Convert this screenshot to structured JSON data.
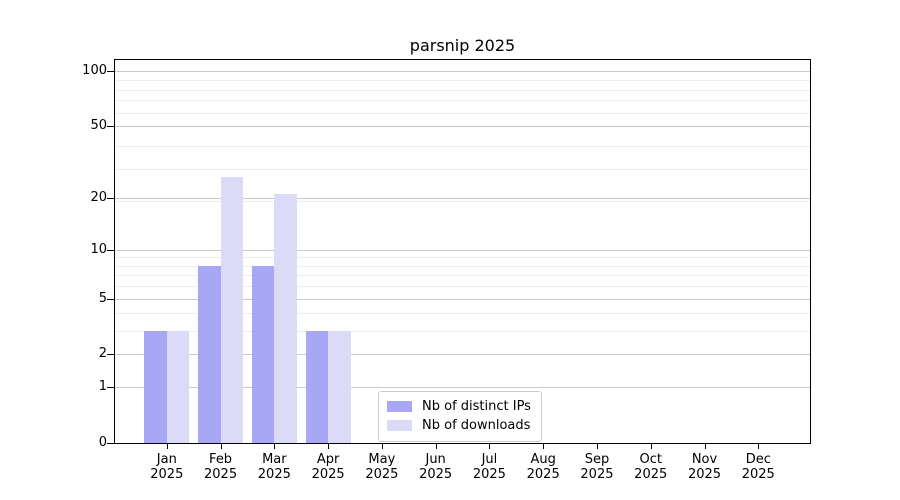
{
  "title": "parsnip 2025",
  "legend": {
    "items": [
      {
        "label": "Nb of distinct IPs",
        "color": "#a7a7f5"
      },
      {
        "label": "Nb of downloads",
        "color": "#dbdbf7"
      }
    ]
  },
  "axes": {
    "y_tick_labels": [
      "0",
      "1",
      "2",
      "5",
      "10",
      "20",
      "50",
      "100"
    ],
    "x_month_labels": [
      "Jan",
      "Feb",
      "Mar",
      "Apr",
      "May",
      "Jun",
      "Jul",
      "Aug",
      "Sep",
      "Oct",
      "Nov",
      "Dec"
    ],
    "x_year_label": "2025"
  },
  "chart_data": {
    "type": "bar",
    "title": "parsnip 2025",
    "categories": [
      "Jan 2025",
      "Feb 2025",
      "Mar 2025",
      "Apr 2025",
      "May 2025",
      "Jun 2025",
      "Jul 2025",
      "Aug 2025",
      "Sep 2025",
      "Oct 2025",
      "Nov 2025",
      "Dec 2025"
    ],
    "series": [
      {
        "name": "Nb of distinct IPs",
        "color": "#a7a7f5",
        "values": [
          3,
          8,
          8,
          3,
          0,
          0,
          0,
          0,
          0,
          0,
          0,
          0
        ]
      },
      {
        "name": "Nb of downloads",
        "color": "#dbdbf7",
        "values": [
          3,
          26,
          21,
          3,
          0,
          0,
          0,
          0,
          0,
          0,
          0,
          0
        ]
      }
    ],
    "xlabel": "",
    "ylabel": "",
    "ylim": [
      0,
      100
    ],
    "y_scale": "log10(1+v)",
    "y_ticks": [
      0,
      1,
      2,
      5,
      10,
      20,
      50,
      100
    ],
    "y_minor_ticks_1plusv": [
      4,
      5,
      7,
      8,
      9,
      10,
      20,
      30,
      40,
      60,
      70,
      80,
      90
    ],
    "grid": true,
    "legend_position": "lower center",
    "colors": {
      "distinct_ips": "#a7a7f5",
      "downloads": "#dbdbf7",
      "grid_major": "#c9c9c9",
      "grid_minor": "#ededed"
    }
  }
}
